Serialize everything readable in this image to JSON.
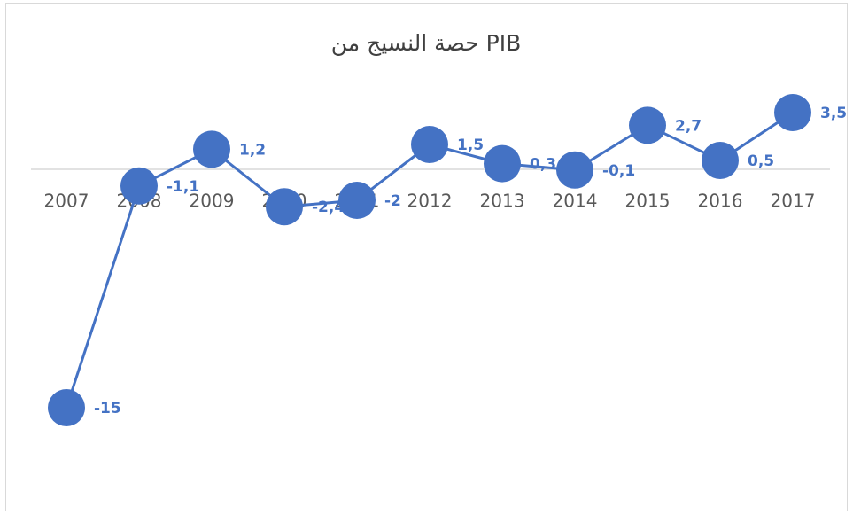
{
  "chart_data": {
    "type": "line",
    "title": "حصة النسيج من PIB",
    "categories": [
      "2007",
      "2008",
      "2009",
      "2010",
      "2011",
      "2012",
      "2013",
      "2014",
      "2015",
      "2016",
      "2017"
    ],
    "series": [
      {
        "name": "PIB",
        "color": "#4472c4",
        "values": [
          -15,
          -1.1,
          1.2,
          -2.4,
          -2,
          1.5,
          0.3,
          -0.1,
          2.7,
          0.5,
          3.5
        ],
        "value_labels": [
          "-15",
          "-1,1",
          "1,2",
          "-2,4",
          "-2",
          "1,5",
          "0,3",
          "-0,1",
          "2,7",
          "0,5",
          "3,5"
        ]
      }
    ]
  }
}
